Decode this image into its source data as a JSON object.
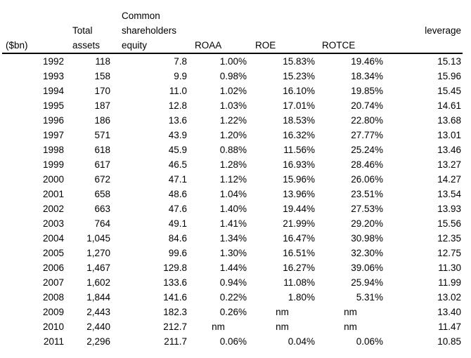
{
  "accent_colors": {
    "background": "#ffffff",
    "text": "#000000",
    "rule": "#000000"
  },
  "chart_data": {
    "type": "table",
    "title": "",
    "unit_note": "($bn)",
    "not_meaningful_label": "nm",
    "columns": [
      {
        "key": "year",
        "label": "($bn)"
      },
      {
        "key": "total-assets",
        "label": "Total\nassets"
      },
      {
        "key": "common-shareholders-equity",
        "label": "Common\nshareholders\nequity"
      },
      {
        "key": "roaa",
        "label": "ROAA"
      },
      {
        "key": "roe",
        "label": "ROE"
      },
      {
        "key": "rotce",
        "label": "ROTCE"
      },
      {
        "key": "leverage",
        "label": "leverage"
      }
    ],
    "rows": [
      [
        "1992",
        "118",
        "7.8",
        "1.00%",
        "15.83%",
        "19.46%",
        "15.13"
      ],
      [
        "1993",
        "158",
        "9.9",
        "0.98%",
        "15.23%",
        "18.34%",
        "15.96"
      ],
      [
        "1994",
        "170",
        "11.0",
        "1.02%",
        "16.10%",
        "19.85%",
        "15.45"
      ],
      [
        "1995",
        "187",
        "12.8",
        "1.03%",
        "17.01%",
        "20.74%",
        "14.61"
      ],
      [
        "1996",
        "186",
        "13.6",
        "1.22%",
        "18.53%",
        "22.80%",
        "13.68"
      ],
      [
        "1997",
        "571",
        "43.9",
        "1.20%",
        "16.32%",
        "27.77%",
        "13.01"
      ],
      [
        "1998",
        "618",
        "45.9",
        "0.88%",
        "11.56%",
        "25.24%",
        "13.46"
      ],
      [
        "1999",
        "617",
        "46.5",
        "1.28%",
        "16.93%",
        "28.46%",
        "13.27"
      ],
      [
        "2000",
        "672",
        "47.1",
        "1.12%",
        "15.96%",
        "26.06%",
        "14.27"
      ],
      [
        "2001",
        "658",
        "48.6",
        "1.04%",
        "13.96%",
        "23.51%",
        "13.54"
      ],
      [
        "2002",
        "663",
        "47.6",
        "1.40%",
        "19.44%",
        "27.53%",
        "13.93"
      ],
      [
        "2003",
        "764",
        "49.1",
        "1.41%",
        "21.99%",
        "29.20%",
        "15.56"
      ],
      [
        "2004",
        "1,045",
        "84.6",
        "1.34%",
        "16.47%",
        "30.98%",
        "12.35"
      ],
      [
        "2005",
        "1,270",
        "99.6",
        "1.30%",
        "16.51%",
        "32.30%",
        "12.75"
      ],
      [
        "2006",
        "1,467",
        "129.8",
        "1.44%",
        "16.27%",
        "39.06%",
        "11.30"
      ],
      [
        "2007",
        "1,602",
        "133.6",
        "0.94%",
        "11.08%",
        "25.94%",
        "11.99"
      ],
      [
        "2008",
        "1,844",
        "141.6",
        "0.22%",
        "1.80%",
        "5.31%",
        "13.02"
      ],
      [
        "2009",
        "2,443",
        "182.3",
        "0.26%",
        "nm",
        "nm",
        "13.40"
      ],
      [
        "2010",
        "2,440",
        "212.7",
        "nm",
        "nm",
        "nm",
        "11.47"
      ],
      [
        "2011",
        "2,296",
        "211.7",
        "0.06%",
        "0.04%",
        "0.06%",
        "10.85"
      ]
    ]
  }
}
